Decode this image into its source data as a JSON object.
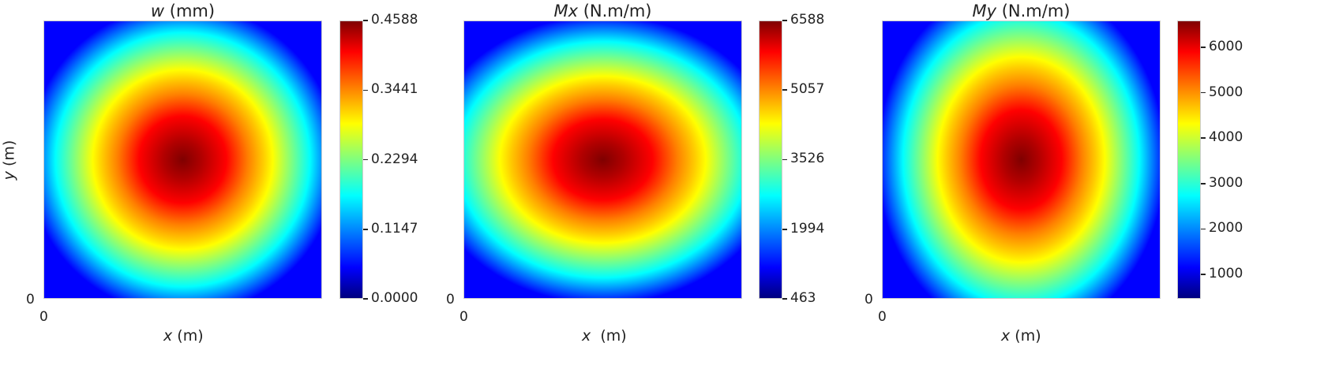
{
  "chart_data": [
    {
      "type": "heatmap",
      "title_var": "w",
      "title_unit": " (mm)",
      "xlabel_var": "x",
      "xlabel_unit": " (m)",
      "ylabel_var": "y",
      "ylabel_unit": " (m)",
      "x_tick": "0",
      "y_tick": "0",
      "colormap": "jet",
      "colorbar_ticks": [
        "0.0000",
        "0.1147",
        "0.2294",
        "0.3441",
        "0.4588"
      ],
      "colorbar_range": [
        0.0,
        0.4588
      ],
      "peak_value": 0.4588,
      "shape": "circular"
    },
    {
      "type": "heatmap",
      "title_var": "Mx",
      "title_unit": " (N.m/m)",
      "xlabel_var": "x",
      "xlabel_unit": "  (m)",
      "x_tick": "0",
      "y_tick": "0",
      "colormap": "jet",
      "colorbar_ticks": [
        "463",
        "1994",
        "3526",
        "5057",
        "6588"
      ],
      "colorbar_range": [
        463,
        6588
      ],
      "peak_value": 6588,
      "shape": "horizontally-elongated"
    },
    {
      "type": "heatmap",
      "title_var": "My",
      "title_unit": " (N.m/m)",
      "xlabel_var": "x",
      "xlabel_unit": " (m)",
      "x_tick": "0",
      "y_tick": "0",
      "colormap": "jet",
      "colorbar_ticks": [
        "1000",
        "2000",
        "3000",
        "4000",
        "5000",
        "6000"
      ],
      "colorbar_range": [
        463,
        6588
      ],
      "peak_value": 6588,
      "shape": "vertically-elongated"
    }
  ]
}
